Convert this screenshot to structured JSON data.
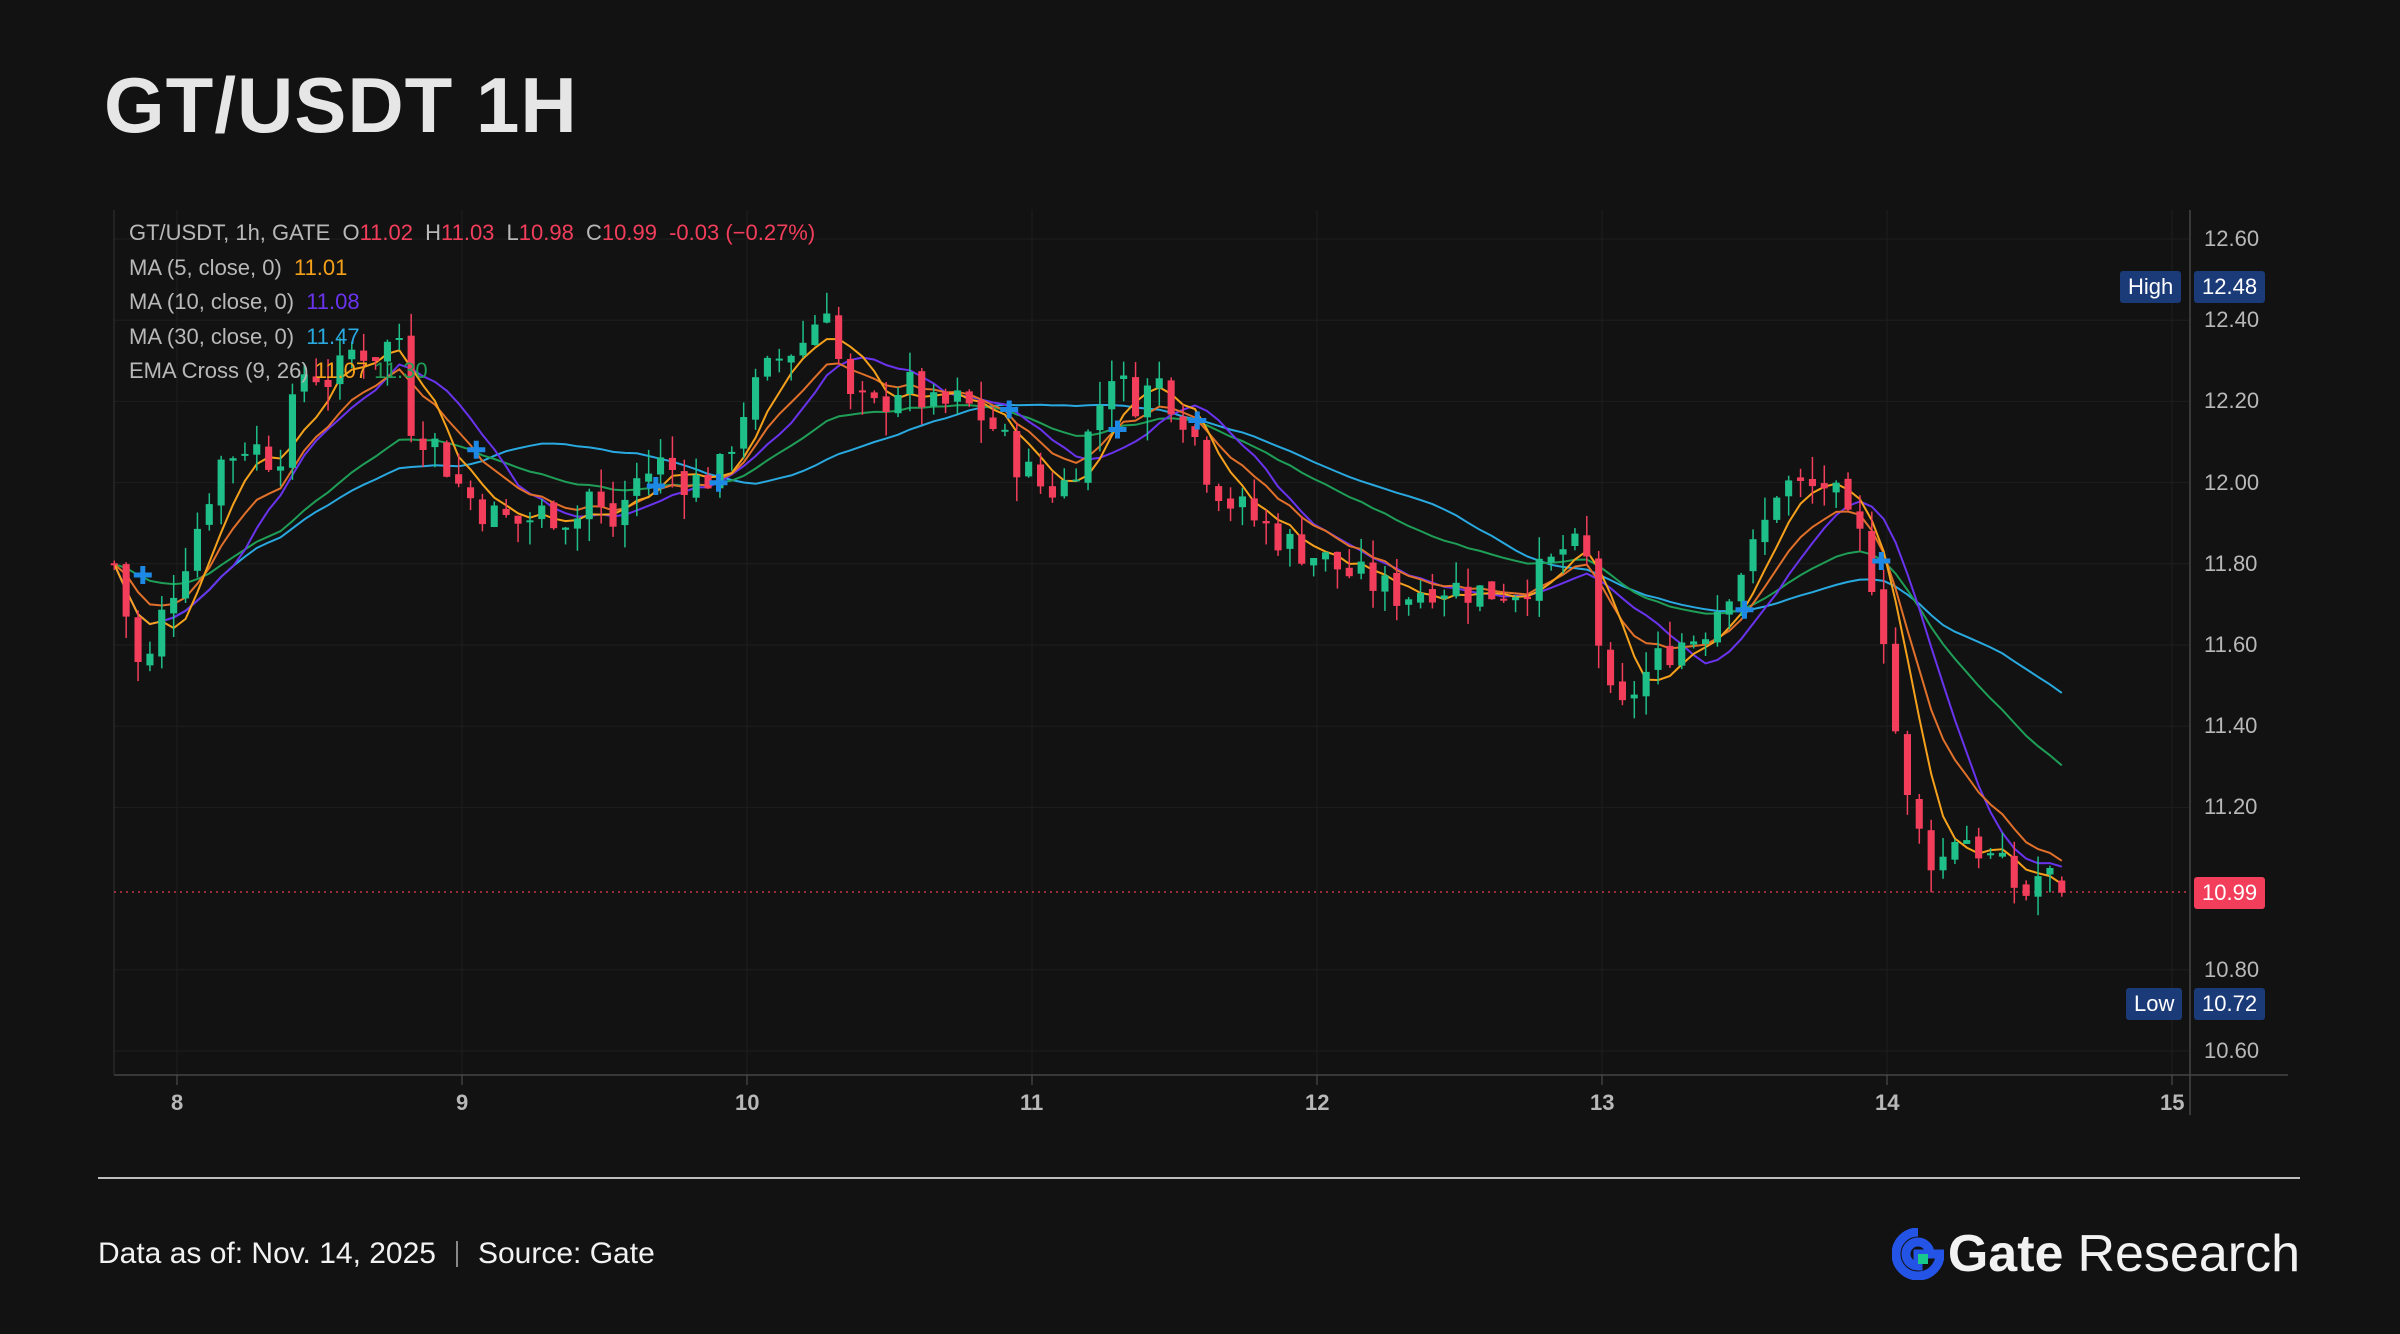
{
  "title": "GT/USDT 1H",
  "legend": {
    "symbol": "GT/USDT, 1h, GATE",
    "o_label": "O",
    "o_val": "11.02",
    "h_label": "H",
    "h_val": "11.03",
    "l_label": "L",
    "l_val": "10.98",
    "c_label": "C",
    "c_val": "10.99",
    "change": "-0.03 (−0.27%)",
    "ma5_label": "MA (5, close, 0)",
    "ma5_val": "11.01",
    "ma10_label": "MA (10, close, 0)",
    "ma10_val": "11.08",
    "ma30_label": "MA (30, close, 0)",
    "ma30_val": "11.47",
    "ema_label": "EMA Cross (9, 26)",
    "ema_fast_val": "11.07",
    "ema_slow_val": "11.30"
  },
  "tags": {
    "high_label": "High",
    "high_val": "12.48",
    "low_label": "Low",
    "low_val": "10.72",
    "last_val": "10.99"
  },
  "footer": {
    "data_as_of": "Data as of: Nov. 14, 2025",
    "source": "Source:  Gate"
  },
  "brand": {
    "name": "Gate",
    "suffix": "Research"
  },
  "colors": {
    "up": "#1fbf8a",
    "down": "#f23e5b",
    "ma5": "#f5a11c",
    "ma10": "#6a33ee",
    "ma30": "#29a9e0",
    "ema_slow": "#1f9e57",
    "cross": "#1e88e5"
  },
  "chart_data": {
    "type": "candlestick",
    "title": "GT/USDT 1H",
    "x_ticks": [
      "8",
      "9",
      "10",
      "11",
      "12",
      "13",
      "14",
      "15"
    ],
    "y_ticks": [
      "12.60",
      "12.40",
      "12.20",
      "12.00",
      "11.80",
      "11.60",
      "11.40",
      "11.20",
      "10.80",
      "10.60"
    ],
    "ylim": [
      10.55,
      12.65
    ],
    "xlim_days": [
      7.78,
      15.05
    ],
    "grid": true,
    "last_price": 10.99,
    "high": 12.48,
    "low": 10.72,
    "close_path": [
      [
        7.78,
        11.8
      ],
      [
        7.88,
        11.5
      ],
      [
        7.95,
        11.68
      ],
      [
        8.05,
        11.85
      ],
      [
        8.15,
        12.05
      ],
      [
        8.25,
        12.1
      ],
      [
        8.35,
        12.05
      ],
      [
        8.45,
        12.28
      ],
      [
        8.55,
        12.25
      ],
      [
        8.62,
        12.33
      ],
      [
        8.7,
        12.32
      ],
      [
        8.78,
        12.36
      ],
      [
        8.82,
        12.15
      ],
      [
        8.9,
        12.1
      ],
      [
        9.0,
        11.98
      ],
      [
        9.1,
        11.92
      ],
      [
        9.2,
        11.9
      ],
      [
        9.3,
        11.93
      ],
      [
        9.4,
        11.91
      ],
      [
        9.45,
        11.98
      ],
      [
        9.52,
        11.88
      ],
      [
        9.6,
        12.0
      ],
      [
        9.7,
        12.05
      ],
      [
        9.8,
        12.0
      ],
      [
        9.9,
        12.02
      ],
      [
        10.0,
        12.2
      ],
      [
        10.1,
        12.3
      ],
      [
        10.2,
        12.35
      ],
      [
        10.28,
        12.45
      ],
      [
        10.35,
        12.2
      ],
      [
        10.45,
        12.18
      ],
      [
        10.55,
        12.25
      ],
      [
        10.65,
        12.18
      ],
      [
        10.75,
        12.2
      ],
      [
        10.85,
        12.15
      ],
      [
        10.95,
        12.05
      ],
      [
        11.05,
        11.98
      ],
      [
        11.12,
        12.0
      ],
      [
        11.2,
        12.12
      ],
      [
        11.28,
        12.28
      ],
      [
        11.35,
        12.2
      ],
      [
        11.45,
        12.25
      ],
      [
        11.55,
        12.15
      ],
      [
        11.62,
        12.02
      ],
      [
        11.7,
        11.95
      ],
      [
        11.8,
        11.9
      ],
      [
        11.9,
        11.85
      ],
      [
        12.0,
        11.82
      ],
      [
        12.1,
        11.78
      ],
      [
        12.2,
        11.75
      ],
      [
        12.3,
        11.72
      ],
      [
        12.4,
        11.75
      ],
      [
        12.5,
        11.74
      ],
      [
        12.6,
        11.73
      ],
      [
        12.7,
        11.74
      ],
      [
        12.8,
        11.78
      ],
      [
        12.88,
        11.85
      ],
      [
        12.95,
        11.8
      ],
      [
        13.0,
        11.55
      ],
      [
        13.05,
        11.4
      ],
      [
        13.1,
        11.48
      ],
      [
        13.18,
        11.55
      ],
      [
        13.25,
        11.6
      ],
      [
        13.35,
        11.63
      ],
      [
        13.45,
        11.75
      ],
      [
        13.55,
        11.85
      ],
      [
        13.62,
        12.0
      ],
      [
        13.72,
        11.98
      ],
      [
        13.8,
        12.0
      ],
      [
        13.85,
        11.9
      ],
      [
        13.92,
        11.85
      ],
      [
        14.0,
        11.6
      ],
      [
        14.05,
        11.25
      ],
      [
        14.12,
        11.12
      ],
      [
        14.18,
        11.05
      ],
      [
        14.25,
        11.15
      ],
      [
        14.32,
        11.1
      ],
      [
        14.4,
        11.05
      ],
      [
        14.48,
        10.98
      ],
      [
        14.55,
        11.05
      ],
      [
        14.6,
        10.99
      ]
    ],
    "series": [
      {
        "name": "MA (5, close, 0)",
        "last": 11.01
      },
      {
        "name": "MA (10, close, 0)",
        "last": 11.08
      },
      {
        "name": "MA (30, close, 0)",
        "last": 11.47
      },
      {
        "name": "EMA Cross (9, 26)",
        "last": [
          11.07,
          11.3
        ]
      }
    ],
    "cross_markers_days": [
      7.88,
      9.05,
      9.68,
      9.9,
      10.92,
      11.3,
      11.58,
      13.5,
      13.98
    ]
  }
}
